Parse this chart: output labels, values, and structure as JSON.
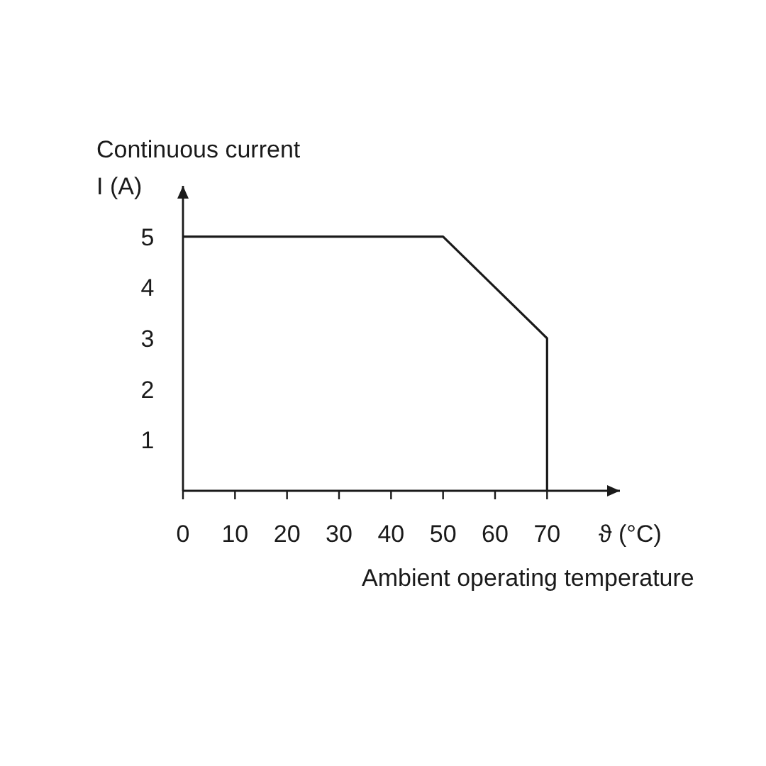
{
  "chart_data": {
    "type": "line",
    "ylabel": "I (A)",
    "xlabel": "ϑ (°C)",
    "annotations": [
      "Continuous current",
      "Ambient operating temperature"
    ],
    "x": [
      0,
      50,
      70,
      70
    ],
    "series": [
      {
        "color": "#1a1a1a",
        "values": [
          5,
          5,
          3,
          0
        ]
      }
    ],
    "xlim": [
      0,
      84
    ],
    "ylim": [
      0,
      6
    ],
    "xticks": [
      0,
      10,
      20,
      30,
      40,
      50,
      60,
      70
    ],
    "yticks": [
      1,
      2,
      3,
      4,
      5
    ],
    "grid": false,
    "marker": "none",
    "line_style": "solid"
  }
}
